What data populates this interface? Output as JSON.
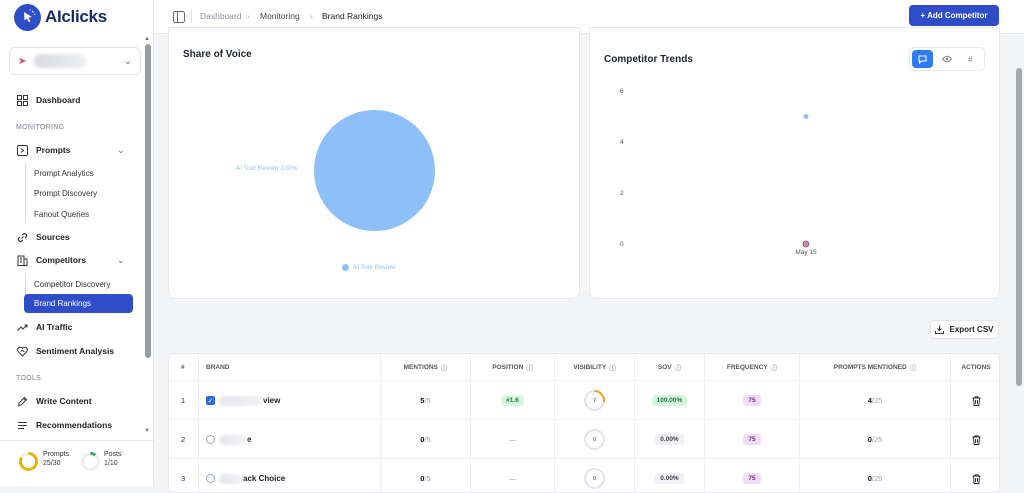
{
  "brand": {
    "name": "AIclicks"
  },
  "sidebar": {
    "nav": {
      "dashboard": "Dashboard",
      "monitoring_section": "MONITORING",
      "prompts": "Prompts",
      "prompt_analytics": "Prompt Analytics",
      "prompt_discovery": "Prompt Discovery",
      "fanout_queries": "Fanout Queries",
      "sources": "Sources",
      "competitors": "Competitors",
      "competitor_discovery": "Competitor Discovery",
      "brand_rankings": "Brand Rankings",
      "ai_traffic": "AI Traffic",
      "sentiment_analysis": "Sentiment Analysis",
      "tools_section": "TOOLS",
      "write_content": "Write Content",
      "recommendations": "Recommendations"
    },
    "usage": {
      "prompts_label": "Prompts",
      "prompts_value": "25/30",
      "posts_label": "Posts",
      "posts_value": "1/10"
    }
  },
  "breadcrumb": {
    "items": [
      "Dashboard",
      "Monitoring",
      "Brand Rankings"
    ]
  },
  "header": {
    "add_button": "+ Add Competitor"
  },
  "share_of_voice": {
    "title": "Share of Voice",
    "slice_label": "AI Tool Review 100%",
    "legend": "AI Tool Review",
    "color": "#8ec0f7"
  },
  "competitor_trends": {
    "title": "Competitor Trends",
    "y_ticks": [
      "6",
      "4",
      "2",
      "0"
    ],
    "x_tick": "May 15",
    "views": [
      "chat-icon",
      "eye-icon",
      "hash-icon"
    ]
  },
  "chart_data": {
    "type": "scatter",
    "title": "Competitor Trends",
    "x": [
      "May 15"
    ],
    "ylim": [
      0,
      6
    ],
    "series": [
      {
        "values": [
          5
        ],
        "color": "#8ec0f7"
      },
      {
        "values": [
          0
        ],
        "color": "#c58aa6"
      }
    ]
  },
  "table": {
    "export_label": "Export CSV",
    "columns": [
      "#",
      "BRAND",
      "MENTIONS",
      "POSITION",
      "VISIBILITY",
      "SOV",
      "FREQUENCY",
      "PROMPTS MENTIONED",
      "ACTIONS"
    ],
    "rows": [
      {
        "num": "1",
        "brand": "view",
        "mentions": "5",
        "mentions_total": "/5",
        "position": "#1.6",
        "visibility": "7",
        "visibility_fraction": 0.28,
        "sov": "100.00%",
        "frequency": "75",
        "prompts": "4",
        "prompts_total": "/25"
      },
      {
        "num": "2",
        "brand": "e",
        "mentions": "0",
        "mentions_total": "/5",
        "position": "—",
        "visibility": "0",
        "visibility_fraction": 0,
        "sov": "0.00%",
        "frequency": "75",
        "prompts": "0",
        "prompts_total": "/25"
      },
      {
        "num": "3",
        "brand": "ack Choice",
        "mentions": "0",
        "mentions_total": "/5",
        "position": "—",
        "visibility": "0",
        "visibility_fraction": 0,
        "sov": "0.00%",
        "frequency": "75",
        "prompts": "0",
        "prompts_total": "/25"
      }
    ]
  }
}
